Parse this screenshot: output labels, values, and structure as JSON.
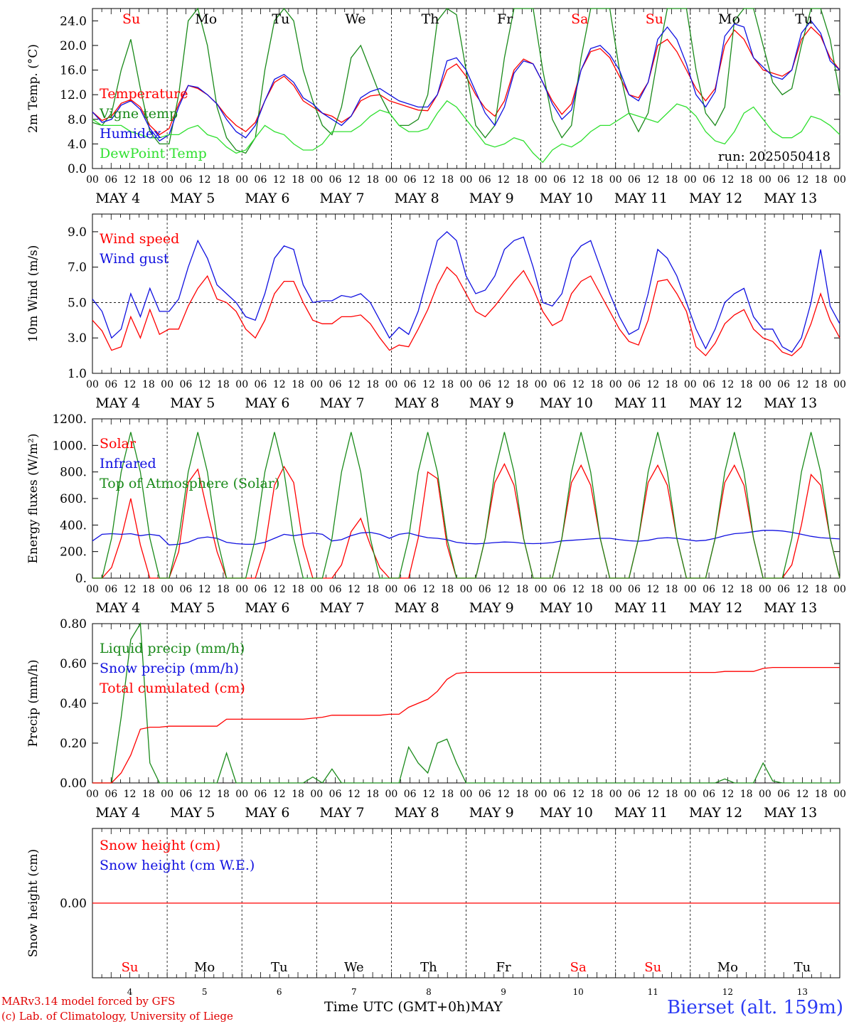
{
  "chart_data": [
    {
      "type": "line",
      "ylabel": "2m Temp. (°C)",
      "ylim": [
        0,
        26
      ],
      "yticks": [
        "0.0",
        "4.0",
        "8.0",
        "12.0",
        "16.0",
        "20.0",
        "24.0"
      ],
      "annotation": "run: 2025050418",
      "day_names": [
        "Su",
        "Mo",
        "Tu",
        "We",
        "Th",
        "Fr",
        "Sa",
        "Su",
        "Mo",
        "Tu"
      ],
      "series": [
        {
          "name": "Temperature",
          "color": "#ff0000",
          "values": [
            9.2,
            7.8,
            8.5,
            10.6,
            11.2,
            10,
            7,
            5.5,
            6.5,
            10.5,
            13.5,
            13,
            12,
            10.5,
            8.5,
            7,
            6,
            7.5,
            11,
            14,
            15,
            13.5,
            11,
            10,
            9,
            8.5,
            7.5,
            8.5,
            11,
            11.8,
            12,
            11,
            10.5,
            10,
            9.5,
            9.4,
            12,
            16,
            17,
            15,
            12,
            9.8,
            8.5,
            11,
            16,
            17.8,
            17,
            14,
            11,
            8.8,
            10.5,
            16,
            19,
            19.5,
            18,
            15,
            12,
            11.5,
            14,
            20,
            21,
            19,
            16,
            13,
            11,
            13,
            20,
            22.5,
            21,
            18,
            16,
            15.5,
            15,
            16,
            21,
            23,
            21.5,
            18,
            16
          ]
        },
        {
          "name": "Vigne temp",
          "color": "#1a8a1a",
          "values": [
            7.5,
            7,
            9,
            16,
            21,
            13,
            6,
            4,
            4,
            12,
            24,
            26,
            20,
            10,
            5,
            3,
            2.5,
            5,
            16,
            24,
            26,
            24,
            16,
            11,
            7,
            5.5,
            10,
            18,
            20,
            16,
            12,
            9,
            7,
            7,
            8,
            12,
            24,
            26,
            25,
            16,
            7,
            5,
            7,
            18,
            26,
            26,
            26,
            16,
            8,
            5,
            7,
            18,
            26,
            26,
            26,
            16,
            9,
            6,
            9,
            18,
            26,
            26,
            26,
            16,
            9,
            7,
            10,
            24,
            26,
            26,
            20,
            14,
            12,
            13,
            20,
            26,
            26,
            21,
            12
          ]
        },
        {
          "name": "Humidex",
          "color": "#1010e0",
          "values": [
            9.2,
            7.5,
            8,
            10.3,
            11,
            9.6,
            6.5,
            4.5,
            5.5,
            10,
            13.5,
            13.2,
            12,
            10.5,
            8,
            6,
            5,
            7,
            11,
            14.5,
            15.3,
            14,
            11.5,
            10.5,
            9,
            8,
            7,
            8.5,
            11.5,
            12.5,
            13,
            12,
            11,
            10.5,
            10,
            10,
            12,
            17.5,
            18,
            16,
            12.5,
            9,
            7,
            10,
            15.5,
            17.5,
            17,
            14,
            10.5,
            8,
            9.5,
            16,
            19.5,
            20,
            18.5,
            16,
            12,
            11,
            14,
            21,
            23,
            21,
            17,
            12,
            10,
            12.5,
            21.5,
            23.5,
            23,
            18,
            16.5,
            15,
            14.5,
            16,
            22,
            24,
            22,
            17.5,
            16
          ]
        },
        {
          "name": "DewPoint Temp",
          "color": "#30e030",
          "values": [
            8,
            7,
            7,
            7,
            6,
            5.5,
            5,
            5,
            5.5,
            5.5,
            6.5,
            7,
            5.5,
            5,
            3.5,
            2.5,
            3,
            5,
            7,
            6,
            5.5,
            4,
            3,
            3,
            4,
            6,
            6,
            6,
            7,
            8.5,
            9.5,
            9,
            7,
            6,
            6,
            6.5,
            9,
            11,
            10,
            8,
            6,
            4,
            3.5,
            4,
            5,
            4.5,
            2.5,
            1,
            3,
            4,
            3.5,
            4.5,
            6,
            7,
            7,
            8,
            9,
            8.5,
            8,
            7.5,
            9,
            10.5,
            10,
            8.5,
            6,
            4.5,
            4,
            6,
            9,
            10,
            8,
            6,
            5,
            5,
            6,
            8.5,
            8,
            7,
            5.5
          ]
        }
      ]
    },
    {
      "type": "line",
      "ylabel": "10m Wind (m/s)",
      "ylim": [
        1,
        10
      ],
      "yticks": [
        "1.0",
        "3.0",
        "5.0",
        "7.0",
        "9.0"
      ],
      "series": [
        {
          "name": "Wind speed",
          "color": "#ff0000",
          "values": [
            4,
            3.4,
            2.3,
            2.5,
            4.2,
            3,
            4.6,
            3.2,
            3.5,
            3.5,
            4.8,
            5.8,
            6.5,
            5.2,
            5,
            4.5,
            3.5,
            3,
            4,
            5.5,
            6.2,
            6.2,
            5,
            4,
            3.8,
            3.8,
            4.2,
            4.2,
            4.3,
            3.8,
            3,
            2.3,
            2.6,
            2.5,
            3.5,
            4.6,
            6,
            7,
            6.5,
            5.5,
            4.5,
            4.2,
            4.8,
            5.5,
            6.2,
            6.8,
            5.8,
            4.5,
            3.7,
            4,
            5.5,
            6.2,
            6.5,
            5.5,
            4.5,
            3.5,
            2.8,
            2.6,
            4,
            6.2,
            6.3,
            5.5,
            4.5,
            2.5,
            2,
            2.7,
            3.8,
            4.3,
            4.6,
            3.5,
            3,
            2.8,
            2.2,
            2,
            2.5,
            3.8,
            5.5,
            4,
            3
          ]
        },
        {
          "name": "Wind gust",
          "color": "#1010e0",
          "values": [
            5.2,
            4.5,
            3,
            3.5,
            5.5,
            4.2,
            5.8,
            4.5,
            4.5,
            5.2,
            7,
            8.5,
            7.5,
            6,
            5.5,
            5,
            4.2,
            4,
            5.5,
            7.5,
            8.2,
            8,
            6,
            5,
            5.1,
            5.1,
            5.4,
            5.3,
            5.5,
            5,
            4,
            3,
            3.6,
            3.2,
            4.5,
            6.5,
            8.5,
            9,
            8.5,
            6.5,
            5.5,
            5.7,
            6.5,
            8,
            8.5,
            8.7,
            7,
            5,
            4.8,
            5.5,
            7.5,
            8.2,
            8.5,
            7,
            5.5,
            4.2,
            3.2,
            3.5,
            5.5,
            8,
            7.5,
            6.5,
            5,
            3.5,
            2.4,
            3.5,
            5,
            5.5,
            5.8,
            4.2,
            3.5,
            3.5,
            2.5,
            2.2,
            3,
            5,
            8,
            4.8,
            3.8
          ]
        }
      ]
    },
    {
      "type": "line",
      "ylabel": "Energy fluxes (W/m²)",
      "ylim": [
        0,
        1200
      ],
      "yticks": [
        "0.",
        "200.",
        "400.",
        "600.",
        "800.",
        "1000.",
        "1200."
      ],
      "series": [
        {
          "name": "Solar",
          "color": "#ff0000",
          "values": [
            0,
            0,
            80,
            300,
            600,
            250,
            0,
            0,
            0,
            200,
            720,
            820,
            500,
            200,
            0,
            0,
            0,
            0,
            230,
            700,
            840,
            720,
            250,
            0,
            0,
            0,
            100,
            350,
            450,
            250,
            80,
            0,
            0,
            0,
            300,
            800,
            750,
            250,
            0,
            0,
            0,
            300,
            720,
            860,
            700,
            300,
            0,
            0,
            0,
            300,
            720,
            850,
            700,
            300,
            0,
            0,
            0,
            300,
            720,
            850,
            700,
            300,
            0,
            0,
            0,
            300,
            720,
            850,
            700,
            300,
            0,
            0,
            0,
            100,
            400,
            780,
            700,
            300,
            0
          ]
        },
        {
          "name": "Infrared",
          "color": "#1010e0",
          "values": [
            280,
            330,
            335,
            330,
            335,
            320,
            330,
            320,
            250,
            255,
            270,
            300,
            310,
            300,
            270,
            260,
            255,
            255,
            270,
            300,
            330,
            320,
            330,
            340,
            330,
            280,
            290,
            320,
            340,
            345,
            330,
            300,
            330,
            340,
            320,
            305,
            300,
            290,
            270,
            262,
            258,
            262,
            268,
            272,
            270,
            262,
            260,
            262,
            268,
            280,
            285,
            290,
            295,
            300,
            300,
            290,
            282,
            278,
            285,
            300,
            305,
            300,
            290,
            280,
            285,
            300,
            320,
            335,
            340,
            350,
            360,
            360,
            355,
            345,
            330,
            315,
            305,
            300,
            295
          ]
        },
        {
          "name": "Top of Atmosphere (Solar)",
          "color": "#1a8a1a",
          "values": [
            0,
            0,
            300,
            800,
            1100,
            800,
            300,
            0,
            0,
            300,
            800,
            1100,
            800,
            300,
            0,
            0,
            0,
            300,
            800,
            1100,
            800,
            300,
            0,
            0,
            0,
            300,
            800,
            1100,
            800,
            300,
            0,
            0,
            0,
            300,
            800,
            1100,
            800,
            300,
            0,
            0,
            0,
            300,
            800,
            1100,
            800,
            300,
            0,
            0,
            0,
            300,
            800,
            1100,
            800,
            300,
            0,
            0,
            0,
            300,
            800,
            1100,
            800,
            300,
            0,
            0,
            0,
            300,
            800,
            1100,
            800,
            300,
            0,
            0,
            0,
            300,
            800,
            1100,
            800,
            300,
            0
          ]
        }
      ]
    },
    {
      "type": "line",
      "ylabel": "Precip (mm/h)",
      "ylim": [
        0,
        0.8
      ],
      "yticks": [
        "0.00",
        "0.20",
        "0.40",
        "0.60",
        "0.80"
      ],
      "series": [
        {
          "name": "Liquid precip (mm/h)",
          "color": "#1a8a1a",
          "values": [
            0,
            0,
            0,
            0.33,
            0.72,
            0.8,
            0.1,
            0,
            0,
            0,
            0,
            0,
            0,
            0,
            0.15,
            0,
            0,
            0,
            0,
            0,
            0,
            0,
            0,
            0.03,
            0,
            0.07,
            0,
            0,
            0,
            0,
            0,
            0,
            0,
            0.18,
            0.1,
            0.05,
            0.2,
            0.22,
            0.1,
            0,
            0,
            0,
            0,
            0,
            0,
            0,
            0,
            0,
            0,
            0,
            0,
            0,
            0,
            0,
            0,
            0,
            0,
            0,
            0,
            0,
            0,
            0,
            0,
            0,
            0,
            0,
            0.02,
            0,
            0,
            0,
            0.1,
            0.01,
            0,
            0,
            0,
            0,
            0,
            0,
            0
          ]
        },
        {
          "name": "Snow precip (mm/h)",
          "color": "#1010e0",
          "values": []
        },
        {
          "name": "Total cumulated (cm)",
          "color": "#ff0000",
          "values": [
            0,
            0,
            0,
            0.05,
            0.14,
            0.27,
            0.28,
            0.28,
            0.285,
            0.285,
            0.285,
            0.285,
            0.285,
            0.285,
            0.32,
            0.32,
            0.32,
            0.32,
            0.32,
            0.32,
            0.32,
            0.32,
            0.32,
            0.325,
            0.33,
            0.34,
            0.34,
            0.34,
            0.34,
            0.34,
            0.34,
            0.345,
            0.345,
            0.38,
            0.4,
            0.42,
            0.46,
            0.52,
            0.55,
            0.555,
            0.555,
            0.555,
            0.555,
            0.555,
            0.555,
            0.555,
            0.555,
            0.555,
            0.555,
            0.555,
            0.555,
            0.555,
            0.555,
            0.555,
            0.555,
            0.555,
            0.555,
            0.555,
            0.555,
            0.555,
            0.555,
            0.555,
            0.555,
            0.555,
            0.555,
            0.555,
            0.56,
            0.56,
            0.56,
            0.56,
            0.575,
            0.58,
            0.58,
            0.58,
            0.58,
            0.58,
            0.58,
            0.58,
            0.58
          ]
        }
      ]
    },
    {
      "type": "line",
      "ylabel": "Snow height (cm)",
      "yticks": [
        "0.00"
      ],
      "series": [
        {
          "name": "Snow height (cm)",
          "color": "#ff0000",
          "values": [
            0,
            0
          ]
        },
        {
          "name": "Snow height (cm W.E.)",
          "color": "#1010e0",
          "values": []
        }
      ]
    }
  ],
  "x_axis": {
    "hour_ticks": [
      "00",
      "06",
      "12",
      "18"
    ],
    "end_tick": "00",
    "date_labels": [
      "MAY  4",
      "MAY  5",
      "MAY  6",
      "MAY  7",
      "MAY  8",
      "MAY  9",
      "MAY 10",
      "MAY 11",
      "MAY 12",
      "MAY 13"
    ],
    "bottom_day_numbers": [
      "4",
      "5",
      "6",
      "7",
      "8",
      "9",
      "10",
      "11",
      "12",
      "13"
    ],
    "bottom_day_names": [
      "Su",
      "Mo",
      "Tu",
      "We",
      "Th",
      "Fr",
      "Sa",
      "Su",
      "Mo",
      "Tu"
    ],
    "weekend_color": "#ff0000"
  },
  "footer": {
    "model": "MARv3.14 model forced by GFS",
    "copyright": "(c) Lab. of Climatology, University of Liege",
    "xlabel": "Time UTC (GMT+0h)",
    "month": "MAY",
    "station": "Bierset (alt. 159m)"
  }
}
